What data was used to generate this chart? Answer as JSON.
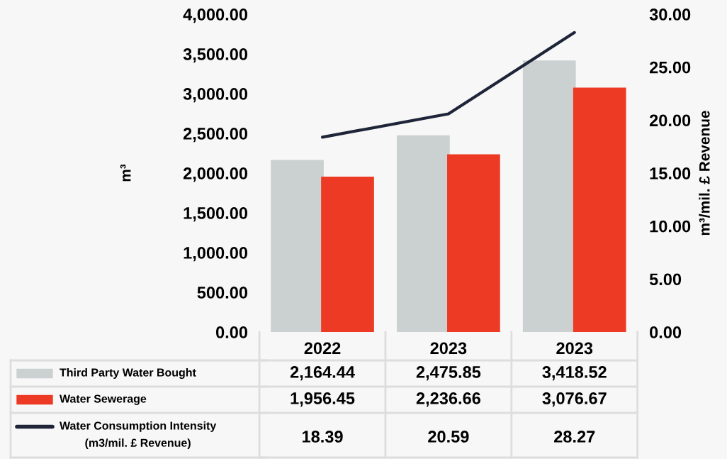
{
  "chart_data": {
    "type": "bar",
    "categories": [
      "2022",
      "2023",
      "2023"
    ],
    "series": [
      {
        "name": "Third Party Water Bought",
        "color": "#cbd0d1",
        "values": [
          2164.44,
          2475.85,
          3418.52
        ],
        "value_labels": [
          "2,164.44",
          "2,475.85",
          "3,418.52"
        ]
      },
      {
        "name": "Water Sewerage",
        "color": "#ed3a24",
        "values": [
          1956.45,
          2236.66,
          3076.67
        ],
        "value_labels": [
          "1,956.45",
          "2,236.66",
          "3,076.67"
        ]
      },
      {
        "name": "Water Consumption Intensity\n(m3/mil. £ Revenue)",
        "type": "line",
        "axis": "y2",
        "color": "#1f2538",
        "values": [
          18.39,
          20.59,
          28.27
        ],
        "value_labels": [
          "18.39",
          "20.59",
          "28.27"
        ]
      }
    ],
    "ylabel": "m³",
    "y2label": "m³/mil. £ Revenue",
    "ylim": [
      0,
      4000
    ],
    "yticks": [
      {
        "value": 0,
        "label": "0.00"
      },
      {
        "value": 500,
        "label": "500.00"
      },
      {
        "value": 1000,
        "label": "1,000.00"
      },
      {
        "value": 1500,
        "label": "1,500.00"
      },
      {
        "value": 2000,
        "label": "2,000.00"
      },
      {
        "value": 2500,
        "label": "2,500.00"
      },
      {
        "value": 3000,
        "label": "3,000.00"
      },
      {
        "value": 3500,
        "label": "3,500.00"
      },
      {
        "value": 4000,
        "label": "4,000.00"
      }
    ],
    "y2lim": [
      0,
      30
    ],
    "y2ticks": [
      {
        "value": 0,
        "label": "0.00"
      },
      {
        "value": 5,
        "label": "5.00"
      },
      {
        "value": 10,
        "label": "10.00"
      },
      {
        "value": 15,
        "label": "15.00"
      },
      {
        "value": 20,
        "label": "20.00"
      },
      {
        "value": 25,
        "label": "25.00"
      },
      {
        "value": 30,
        "label": "30.00"
      }
    ],
    "grid": false,
    "legend": "bottom",
    "marker": "none",
    "line_style": "solid"
  }
}
